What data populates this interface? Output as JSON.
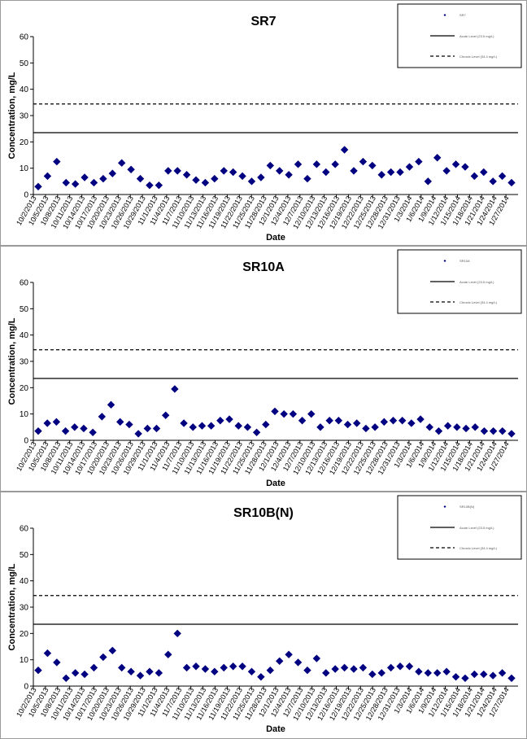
{
  "chart_data": [
    {
      "type": "scatter",
      "title": "SR7",
      "xlabel": "Date",
      "ylabel": "Concentration, mg/L",
      "ylim": [
        0,
        60
      ],
      "yticks": [
        "0",
        "10",
        "20",
        "30",
        "40",
        "50",
        "60"
      ],
      "grid": false,
      "legend_placement": "top-right",
      "legend": [
        "SR7",
        "Acute Level (23.5 mg/L)",
        "Chronic Level (34.4 mg/L)"
      ],
      "x_tick_labels": [
        "10/2/2013",
        "10/5/2013",
        "10/8/2013",
        "10/11/2013",
        "10/14/2013",
        "10/17/2013",
        "10/20/2013",
        "10/23/2013",
        "10/26/2013",
        "10/29/2013",
        "11/1/2013",
        "11/4/2013",
        "11/7/2013",
        "11/10/2013",
        "11/13/2013",
        "11/16/2013",
        "11/19/2013",
        "11/22/2013",
        "11/25/2013",
        "11/28/2013",
        "12/1/2013",
        "12/4/2013",
        "12/7/2013",
        "12/10/2013",
        "12/13/2013",
        "12/16/2013",
        "12/19/2013",
        "12/22/2013",
        "12/25/2013",
        "12/28/2013",
        "12/31/2013",
        "1/3/2014",
        "1/6/2014",
        "1/9/2014",
        "1/12/2014",
        "1/15/2014",
        "1/18/2014",
        "1/21/2014",
        "1/24/2014",
        "1/27/2014"
      ],
      "reference_lines": [
        {
          "name": "Acute Level (23.5 mg/L)",
          "value": 23.5,
          "style": "solid"
        },
        {
          "name": "Chronic Level (34.4 mg/L)",
          "value": 34.4,
          "style": "dashed"
        }
      ],
      "series": [
        {
          "name": "SR7",
          "marker": "diamond",
          "color": "#000080",
          "values": [
            3,
            7,
            12.5,
            4.5,
            4,
            6.5,
            4.5,
            6,
            8,
            12,
            9.5,
            6,
            3.5,
            3.5,
            9,
            9,
            7.5,
            5.5,
            4.5,
            6,
            9,
            8.5,
            7,
            5,
            6.5,
            11,
            9,
            7.5,
            11.5,
            6,
            11.5,
            8.5,
            11.5,
            17,
            9,
            12.5,
            11,
            7.5,
            8.5,
            8.5,
            10.5,
            12.5,
            5,
            14,
            9,
            11.5,
            10.5,
            7,
            8.5,
            5,
            7,
            4.5
          ]
        }
      ]
    },
    {
      "type": "scatter",
      "title": "SR10A",
      "xlabel": "Date",
      "ylabel": "Concentration, mg/L",
      "ylim": [
        0,
        60
      ],
      "yticks": [
        "0",
        "10",
        "20",
        "30",
        "40",
        "50",
        "60"
      ],
      "grid": false,
      "legend_placement": "top-right",
      "legend": [
        "SR10A",
        "Acute Level (23.5 mg/L)",
        "Chronic Level (34.4 mg/L)"
      ],
      "x_tick_labels": [
        "10/2/2013",
        "10/5/2013",
        "10/8/2013",
        "10/11/2013",
        "10/14/2013",
        "10/17/2013",
        "10/20/2013",
        "10/23/2013",
        "10/26/2013",
        "10/29/2013",
        "11/1/2013",
        "11/4/2013",
        "11/7/2013",
        "11/10/2013",
        "11/13/2013",
        "11/16/2013",
        "11/19/2013",
        "11/22/2013",
        "11/25/2013",
        "11/28/2013",
        "12/1/2013",
        "12/4/2013",
        "12/7/2013",
        "12/10/2013",
        "12/13/2013",
        "12/16/2013",
        "12/19/2013",
        "12/22/2013",
        "12/25/2013",
        "12/28/2013",
        "12/31/2013",
        "1/3/2014",
        "1/6/2014",
        "1/9/2014",
        "1/12/2014",
        "1/15/2014",
        "1/18/2014",
        "1/21/2014",
        "1/24/2014",
        "1/27/2014"
      ],
      "reference_lines": [
        {
          "name": "Acute Level (23.5 mg/L)",
          "value": 23.5,
          "style": "solid"
        },
        {
          "name": "Chronic Level (34.4 mg/L)",
          "value": 34.4,
          "style": "dashed"
        }
      ],
      "series": [
        {
          "name": "SR10A",
          "marker": "diamond",
          "color": "#000080",
          "values": [
            3.5,
            6.5,
            7,
            3.5,
            5,
            4.5,
            3,
            9,
            13.5,
            7,
            6,
            2.5,
            4.5,
            4.5,
            9.5,
            19.5,
            6.5,
            5,
            5.5,
            5.5,
            7.5,
            8,
            5.5,
            5,
            3,
            6,
            11,
            10,
            10,
            7.5,
            10,
            5,
            7.5,
            7.5,
            6,
            6.5,
            4.5,
            5,
            7,
            7.5,
            7.5,
            6.5,
            8,
            5,
            3.5,
            5.5,
            5,
            4.5,
            5,
            3.5,
            3.5,
            3.5,
            2.5
          ]
        }
      ]
    },
    {
      "type": "scatter",
      "title": "SR10B(N)",
      "xlabel": "Date",
      "ylabel": "Concentration, mg/L",
      "ylim": [
        0,
        60
      ],
      "yticks": [
        "0",
        "10",
        "20",
        "30",
        "40",
        "50",
        "60"
      ],
      "grid": false,
      "legend_placement": "top-right",
      "legend": [
        "SR10B(N)",
        "Acute Level (23.5 mg/L)",
        "Chronic Level (34.4 mg/L)"
      ],
      "x_tick_labels": [
        "10/2/2013",
        "10/5/2013",
        "10/8/2013",
        "10/11/2013",
        "10/14/2013",
        "10/17/2013",
        "10/20/2013",
        "10/23/2013",
        "10/26/2013",
        "10/29/2013",
        "11/1/2013",
        "11/4/2013",
        "11/7/2013",
        "11/10/2013",
        "11/13/2013",
        "11/16/2013",
        "11/19/2013",
        "11/22/2013",
        "11/25/2013",
        "11/28/2013",
        "12/1/2013",
        "12/4/2013",
        "12/7/2013",
        "12/10/2013",
        "12/13/2013",
        "12/16/2013",
        "12/19/2013",
        "12/22/2013",
        "12/25/2013",
        "12/28/2013",
        "12/31/2013",
        "1/3/2014",
        "1/6/2014",
        "1/9/2014",
        "1/12/2014",
        "1/15/2014",
        "1/18/2014",
        "1/21/2014",
        "1/24/2014",
        "1/27/2014"
      ],
      "reference_lines": [
        {
          "name": "Acute Level (23.5 mg/L)",
          "value": 23.5,
          "style": "solid"
        },
        {
          "name": "Chronic Level (34.4 mg/L)",
          "value": 34.4,
          "style": "dashed"
        }
      ],
      "series": [
        {
          "name": "SR10B(N)",
          "marker": "diamond",
          "color": "#000080",
          "values": [
            6,
            12.5,
            9,
            3,
            5,
            4.5,
            7,
            11,
            13.5,
            7,
            5.5,
            4,
            5.5,
            5,
            12,
            20,
            7,
            7.5,
            6.5,
            5.5,
            7,
            7.5,
            7.5,
            5.5,
            3.5,
            6,
            9.5,
            12,
            9,
            6,
            10.5,
            5,
            6.5,
            7,
            6.5,
            7,
            4.5,
            5,
            7,
            7.5,
            7.5,
            5.5,
            5,
            5,
            5.5,
            3.5,
            3,
            4.5,
            4.5,
            4,
            5,
            3
          ]
        }
      ]
    }
  ]
}
